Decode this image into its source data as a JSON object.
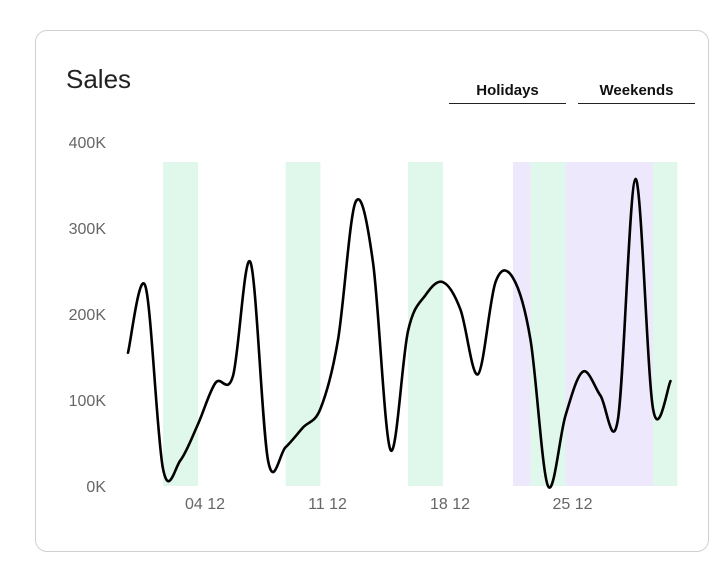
{
  "title": "Sales",
  "buttons": {
    "holidays": "Holidays",
    "weekends": "Weekends"
  },
  "colors": {
    "line": "#000000",
    "weekend": "#e0f8ec",
    "holiday": "#ede8fc"
  },
  "chart_data": {
    "type": "line",
    "title": "Sales",
    "xlabel": "",
    "ylabel": "",
    "ylim": [
      0,
      400000
    ],
    "x_range": [
      "2023-11-30",
      "2023-12-31"
    ],
    "y_ticks": [
      0,
      100000,
      200000,
      300000,
      400000
    ],
    "y_tick_labels": [
      "0K",
      "100K",
      "200K",
      "300K",
      "400K"
    ],
    "x_ticks": [
      "2023-12-04",
      "2023-12-11",
      "2023-12-18",
      "2023-12-25"
    ],
    "x_tick_labels": [
      "04 12",
      "11 12",
      "18 12",
      "25 12"
    ],
    "weekend_bands": [
      [
        "2023-12-02",
        "2023-12-04"
      ],
      [
        "2023-12-09",
        "2023-12-11"
      ],
      [
        "2023-12-16",
        "2023-12-18"
      ],
      [
        "2023-12-23",
        "2023-12-25"
      ],
      [
        "2023-12-30",
        "2023-12-31"
      ]
    ],
    "holiday_bands": [
      [
        "2023-12-22",
        "2023-12-23"
      ],
      [
        "2023-12-25",
        "2023-12-30"
      ]
    ],
    "series": [
      {
        "values": [
          [
            "2023-11-30",
            155000
          ],
          [
            "2023-12-01",
            232000
          ],
          [
            "2023-12-02",
            20000
          ],
          [
            "2023-12-03",
            30000
          ],
          [
            "2023-12-04",
            72000
          ],
          [
            "2023-12-05",
            120000
          ],
          [
            "2023-12-06",
            128000
          ],
          [
            "2023-12-07",
            260000
          ],
          [
            "2023-12-08",
            30000
          ],
          [
            "2023-12-09",
            45000
          ],
          [
            "2023-12-10",
            68000
          ],
          [
            "2023-12-11",
            90000
          ],
          [
            "2023-12-12",
            170000
          ],
          [
            "2023-12-13",
            330000
          ],
          [
            "2023-12-14",
            260000
          ],
          [
            "2023-12-15",
            42000
          ],
          [
            "2023-12-16",
            180000
          ],
          [
            "2023-12-17",
            222000
          ],
          [
            "2023-12-18",
            237000
          ],
          [
            "2023-12-19",
            205000
          ],
          [
            "2023-12-20",
            130000
          ],
          [
            "2023-12-21",
            237000
          ],
          [
            "2023-12-22",
            242000
          ],
          [
            "2023-12-23",
            170000
          ],
          [
            "2023-12-24",
            0
          ],
          [
            "2023-12-25",
            82000
          ],
          [
            "2023-12-26",
            133000
          ],
          [
            "2023-12-27",
            105000
          ],
          [
            "2023-12-28",
            78000
          ],
          [
            "2023-12-29",
            357000
          ],
          [
            "2023-12-30",
            90000
          ],
          [
            "2023-12-31",
            122000
          ]
        ]
      }
    ]
  }
}
